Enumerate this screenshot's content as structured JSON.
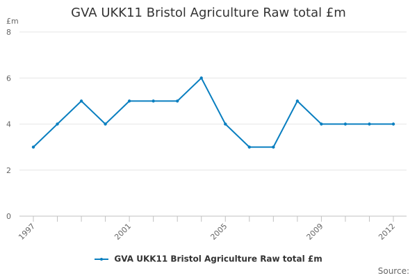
{
  "title": "GVA UKK11 Bristol Agriculture Raw total £m",
  "unit_label": "£m",
  "source_label": "Source:",
  "series_color": "#0a7fc0",
  "chart_data": {
    "type": "line",
    "title": "GVA UKK11 Bristol Agriculture Raw total £m",
    "xlabel": "",
    "ylabel": "£m",
    "x": [
      1997,
      1998,
      1999,
      2000,
      2001,
      2002,
      2003,
      2004,
      2005,
      2006,
      2007,
      2008,
      2009,
      2010,
      2011,
      2012
    ],
    "x_tick_labels": [
      "1997",
      "2001",
      "2005",
      "2009",
      "2012"
    ],
    "y_ticks": [
      0,
      2,
      4,
      6,
      8
    ],
    "ylim": [
      0,
      8
    ],
    "grid": true,
    "legend": "bottom-center",
    "series": [
      {
        "name": "GVA UKK11 Bristol Agriculture Raw total £m",
        "values": [
          3,
          4,
          5,
          4,
          5,
          5,
          5,
          6,
          4,
          3,
          3,
          5,
          4,
          4,
          4,
          4
        ]
      }
    ]
  }
}
